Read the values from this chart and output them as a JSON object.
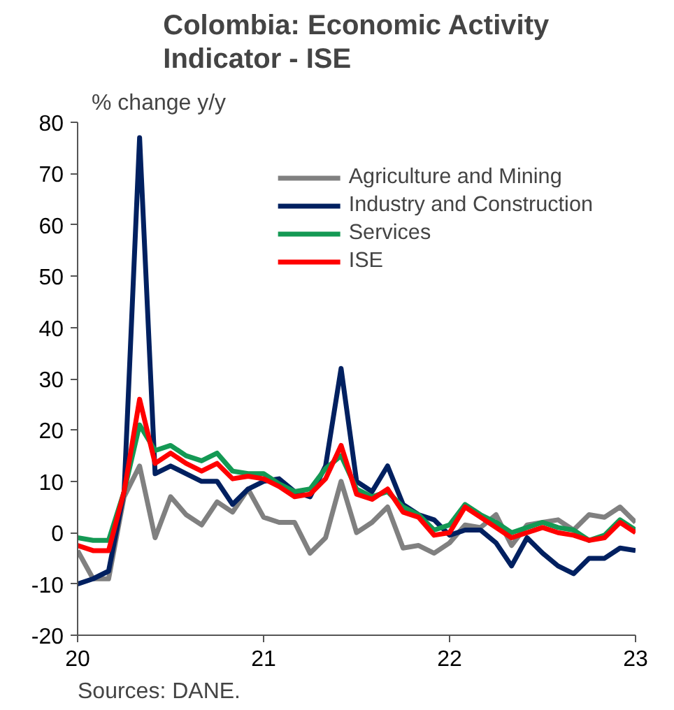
{
  "chart_data": {
    "type": "line",
    "title": "Colombia: Economic Activity Indicator - ISE",
    "ylabel": "% change y/y",
    "x": [
      20.0,
      20.0833,
      20.1667,
      20.25,
      20.3333,
      20.4167,
      20.5,
      20.5833,
      20.6667,
      20.75,
      20.8333,
      20.9167,
      21.0,
      21.0833,
      21.1667,
      21.25,
      21.3333,
      21.4167,
      21.5,
      21.5833,
      21.6667,
      21.75,
      21.8333,
      21.9167,
      22.0,
      22.0833,
      22.1667,
      22.25,
      22.3333,
      22.4167,
      22.5,
      22.5833,
      22.6667,
      22.75,
      22.8333,
      22.9167,
      23.0
    ],
    "xlim": [
      20,
      23
    ],
    "xticks": [
      20,
      21,
      22,
      23
    ],
    "ylim": [
      -20,
      80
    ],
    "yticks": [
      -20,
      -10,
      0,
      10,
      20,
      30,
      40,
      50,
      60,
      70,
      80
    ],
    "series": [
      {
        "name": "Agriculture and Mining",
        "color": "#808080",
        "values": [
          -3.5,
          -9,
          -9,
          7,
          13,
          -1,
          7,
          3.5,
          1.5,
          6,
          4,
          8.5,
          3,
          2,
          2,
          -4,
          -1,
          10,
          0,
          2,
          5,
          -3,
          -2.5,
          -4,
          -2,
          1.5,
          1,
          3.5,
          -2.5,
          1.5,
          2,
          2.5,
          0.5,
          3.5,
          3,
          5,
          2
        ]
      },
      {
        "name": "Industry and Construction",
        "color": "#002060",
        "values": [
          -10,
          -9,
          -7.5,
          8,
          77,
          11.5,
          13,
          11.5,
          10,
          10,
          5.5,
          8.5,
          10,
          10.5,
          8,
          7,
          13,
          32,
          10,
          8,
          13,
          5.5,
          3.5,
          2.5,
          -0.5,
          0.5,
          0.5,
          -2,
          -6.5,
          -1,
          -4,
          -6.5,
          -8,
          -5,
          -5,
          -3,
          -3.5
        ]
      },
      {
        "name": "Services",
        "color": "#149954",
        "values": [
          -1,
          -1.5,
          -1.5,
          8,
          21,
          16,
          17,
          15,
          14,
          15.5,
          12,
          11.5,
          11.5,
          9.5,
          8,
          8.5,
          12.5,
          15,
          8.5,
          7,
          8,
          5,
          3.5,
          0.5,
          1.5,
          5.5,
          3.5,
          2,
          0,
          1,
          2,
          1,
          0.5,
          -1.5,
          -0.5,
          2.5,
          0.5
        ]
      },
      {
        "name": "ISE",
        "color": "#ff0000",
        "values": [
          -2.5,
          -3.5,
          -3.5,
          8,
          26,
          13.5,
          15.5,
          13.5,
          12,
          13.5,
          10.5,
          11,
          10.5,
          9,
          7,
          7.5,
          10.5,
          17,
          7.5,
          6.5,
          8.5,
          4,
          3,
          -0.5,
          0,
          5,
          3,
          1,
          -1,
          0,
          1,
          0,
          -0.5,
          -1.5,
          -1,
          2,
          0
        ]
      }
    ],
    "legend": "top right",
    "grid": false,
    "line_style": "solid",
    "annotations": [
      "Sources: DANE."
    ]
  }
}
